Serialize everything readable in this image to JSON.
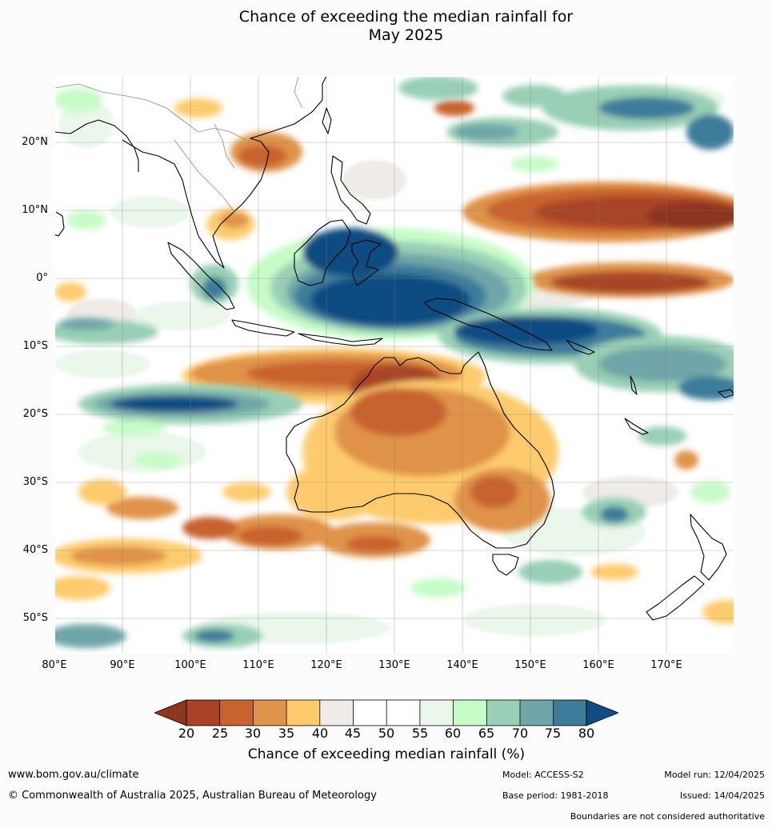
{
  "map": {
    "title_line1": "Chance of exceeding the median rainfall for",
    "title_line2": "May 2025",
    "lat_labels": [
      "20°N",
      "10°N",
      "0°",
      "10°S",
      "20°S",
      "30°S",
      "40°S",
      "50°S"
    ],
    "lon_labels": [
      "80°E",
      "90°E",
      "100°E",
      "110°E",
      "120°E",
      "130°E",
      "140°E",
      "150°E",
      "160°E",
      "170°E"
    ],
    "colors": {
      "c20_25": "#a84425",
      "c25_30": "#c8622f",
      "c30_35": "#e0934a",
      "c35_40": "#fdcb6e",
      "c40_45": "#efece7",
      "c45_55": "#ffffff",
      "c55_60": "#eaf7ea",
      "c60_65": "#c7fbc8",
      "c65_70": "#99cfb5",
      "c70_75": "#6fa6a9",
      "c75_80": "#3e7b9b",
      "c_below20": "#8e3621",
      "c_above80": "#114c82"
    }
  },
  "colorbar": {
    "ticks": [
      "20",
      "25",
      "30",
      "35",
      "40",
      "45",
      "50",
      "55",
      "60",
      "65",
      "70",
      "75",
      "80"
    ],
    "label": "Chance of exceeding median rainfall (%)"
  },
  "footer": {
    "website": "www.bom.gov.au/climate",
    "copyright": "© Commonwealth of Australia 2025, Australian Bureau of Meteorology",
    "model": "Model: ACCESS-S2",
    "base_period": "Base period: 1981-2018",
    "model_run": "Model run: 12/04/2025",
    "issued": "Issued: 14/04/2025",
    "boundaries": "Boundaries are not considered authoritative"
  }
}
